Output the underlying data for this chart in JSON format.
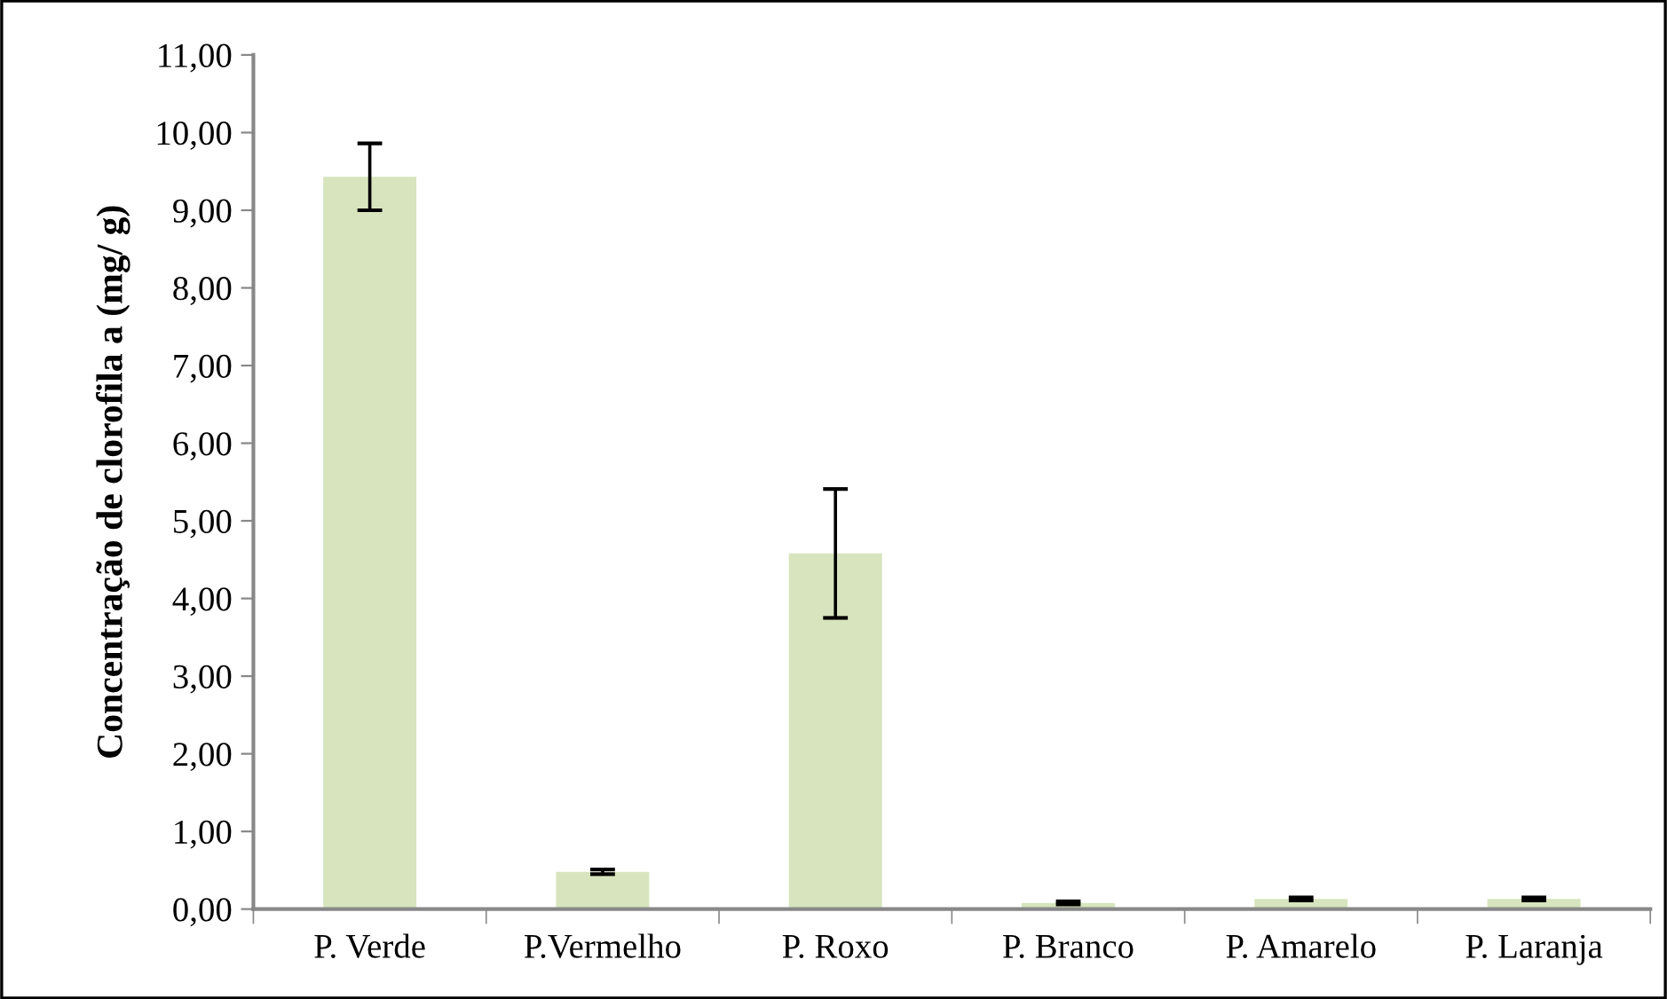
{
  "chart_data": {
    "type": "bar",
    "ylabel": "Concentração de clorofila a (mg/ g)",
    "categories": [
      "P. Verde",
      "P.Vermelho",
      "P. Roxo",
      "P. Branco",
      "P. Amarelo",
      "P. Laranja"
    ],
    "values": [
      9.43,
      0.48,
      4.58,
      0.08,
      0.13,
      0.13
    ],
    "errors": [
      0.43,
      0.03,
      0.83,
      0.02,
      0.02,
      0.02
    ],
    "color": "#d7e4bd",
    "ylim": [
      0,
      11
    ],
    "yticks": [
      {
        "value": 0,
        "label": "0,00"
      },
      {
        "value": 1,
        "label": "1,00"
      },
      {
        "value": 2,
        "label": "2,00"
      },
      {
        "value": 3,
        "label": "3,00"
      },
      {
        "value": 4,
        "label": "4,00"
      },
      {
        "value": 5,
        "label": "5,00"
      },
      {
        "value": 6,
        "label": "6,00"
      },
      {
        "value": 7,
        "label": "7,00"
      },
      {
        "value": 8,
        "label": "8,00"
      },
      {
        "value": 9,
        "label": "9,00"
      },
      {
        "value": 10,
        "label": "10,00"
      },
      {
        "value": 11,
        "label": "11,00"
      }
    ],
    "grid": false,
    "legend": false
  }
}
